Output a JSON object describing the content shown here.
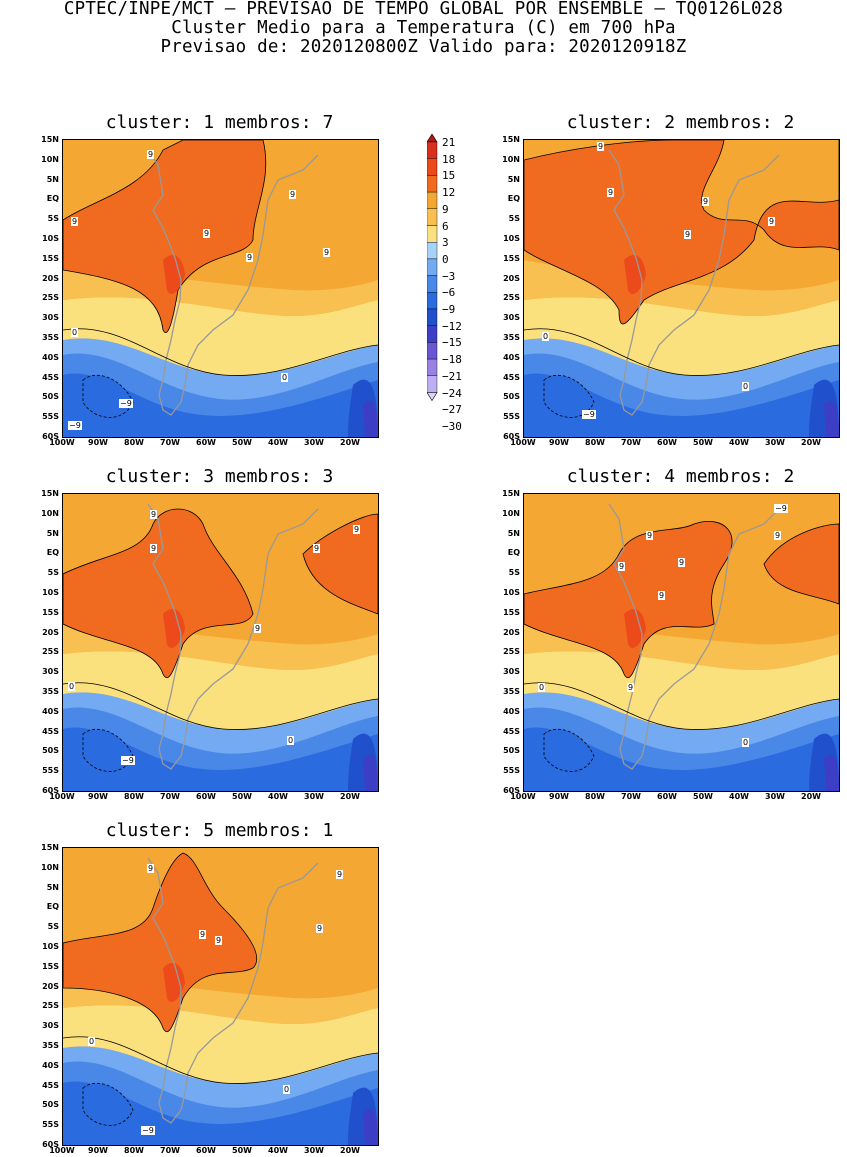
{
  "header": {
    "line1": "CPTEC/INPE/MCT – PREVISAO DE TEMPO GLOBAL POR ENSEMBLE – TQ0126L028",
    "line2": "Cluster Medio para a Temperatura (C) em 700 hPa",
    "line3": "Previsao de: 2020120800Z   Valido para: 2020120918Z"
  },
  "lat_labels": [
    "15N",
    "10N",
    "5N",
    "EQ",
    "5S",
    "10S",
    "15S",
    "20S",
    "25S",
    "30S",
    "35S",
    "40S",
    "45S",
    "50S",
    "55S",
    "60S"
  ],
  "lon_labels": [
    "100W",
    "90W",
    "80W",
    "70W",
    "60W",
    "50W",
    "40W",
    "30W",
    "20W"
  ],
  "colorbar": {
    "labels": [
      "21",
      "18",
      "15",
      "12",
      "9",
      "6",
      "3",
      "0",
      "−3",
      "−6",
      "−9",
      "−12",
      "−15",
      "−18",
      "−21",
      "−24",
      "−27",
      "−30"
    ],
    "colors": [
      "#b2181b",
      "#d7301f",
      "#ec4a1a",
      "#f06a20",
      "#f4a733",
      "#f8c050",
      "#fbe07e",
      "#a8d2f9",
      "#73aaf2",
      "#4a88e8",
      "#2b6be0",
      "#2150cc",
      "#3c3fc6",
      "#6a55d2",
      "#9a82e2",
      "#bcaef0",
      "#dcd4f8"
    ]
  },
  "panels": [
    {
      "title": "cluster: 1   membros: 7",
      "contour_labels": [
        "9",
        "9",
        "9",
        "9",
        "9",
        "9",
        "0",
        "0",
        "−9",
        "−9"
      ]
    },
    {
      "title": "cluster: 2   membros: 2",
      "contour_labels": [
        "9",
        "9",
        "9",
        "9",
        "9",
        "0",
        "0",
        "−9"
      ]
    },
    {
      "title": "cluster: 3   membros: 3",
      "contour_labels": [
        "9",
        "9",
        "9",
        "9",
        "9",
        "0",
        "0",
        "−9"
      ]
    },
    {
      "title": "cluster: 4   membros: 2",
      "contour_labels": [
        "9",
        "9",
        "9",
        "9",
        "9",
        "9",
        "0",
        "0",
        "−9"
      ]
    },
    {
      "title": "cluster: 5   membros: 1",
      "contour_labels": [
        "9",
        "9",
        "9",
        "9",
        "9",
        "0",
        "0",
        "−9"
      ]
    }
  ]
}
